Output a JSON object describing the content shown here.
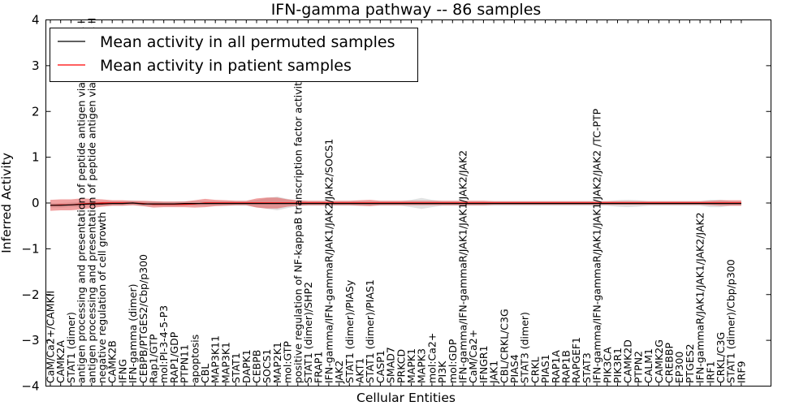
{
  "chart_data": {
    "type": "line",
    "title": "IFN-gamma pathway -- 86 samples",
    "xlabel": "Cellular Entities",
    "ylabel": "Inferred Activity",
    "ylim": [
      -4,
      4
    ],
    "yticks": [
      "4",
      "3",
      "2",
      "1",
      "0",
      "−1",
      "−2",
      "−3",
      "−4"
    ],
    "legend_position": "top-left",
    "categories": [
      "CaM/Ca2+/CAMKII",
      "CAMK2A",
      "STAT1 (dimer)",
      "antigen processing and presentation of peptide antigen via MHC class I",
      "antigen processing and presentation of peptide antigen via MHC class II",
      "negative regulation of cell growth",
      "CAMK2B",
      "IFNG",
      "IFN-gamma (dimer)",
      "CEBPB/PTGES2/Cbp/p300",
      "Rap1/GTP",
      "mol:PI-3-4-5-P3",
      "RAP1/GDP",
      "PTPN11",
      "apoptosis",
      "CBL",
      "MAP3K11",
      "MAP3K1",
      "STAT1",
      "DAPK1",
      "CEBPB",
      "SOCS1",
      "MAP2K1",
      "mol:GTP",
      "positive regulation of NF-kappaB transcription factor activity",
      "STAT1 (dimer)/SHP2",
      "FRAP1",
      "IFN-gamma/IFN-gammaR/JAK1/JAK2/JAK2/SOCS1",
      "JAK2",
      "STAT1 (dimer)/PIASy",
      "AKT1",
      "STAT1 (dimer)/PIAS1",
      "CASP1",
      "SMAD7",
      "PRKCD",
      "MAPK1",
      "MAPK3",
      "mol:Ca2+",
      "PI3K",
      "mol:GDP",
      "IFN-gamma/IFN-gammaR/JAK1/JAK1/JAK2/JAK2",
      "CaM/Ca2+",
      "IFNGR1",
      "JAK1",
      "CBL/CRKL/C3G",
      "PIAS4",
      "STAT3 (dimer)",
      "CRKL",
      "PIAS1",
      "RAP1A",
      "RAP1B",
      "RAPGEF1",
      "STAT3",
      "IFN-gamma/IFN-gammaR/JAK1/JAK1/JAK2/JAK2 /TC-PTP",
      "PIK3CA",
      "PIK3R1",
      "CAMK2D",
      "PTPN2",
      "CALM1",
      "CAMK2G",
      "CREBBP",
      "EP300",
      "PTGES2",
      "IFN-gammaR/JAK1/JAK1/JAK2/JAK2",
      "IRF1",
      "CRKL/C3G",
      "STAT1 (dimer)/Cbp/p300",
      "IRF9"
    ],
    "series": [
      {
        "name": "Mean activity in all permuted samples",
        "color": "#000000",
        "values": [
          -0.05,
          -0.05,
          -0.04,
          -0.03,
          -0.02,
          -0.02,
          -0.01,
          -0.01,
          0.0,
          -0.02,
          -0.02,
          -0.02,
          -0.02,
          -0.01,
          -0.01,
          -0.01,
          -0.01,
          -0.01,
          -0.01,
          -0.01,
          -0.01,
          -0.01,
          -0.01,
          -0.01,
          -0.01,
          -0.01,
          -0.01,
          -0.01,
          -0.01,
          -0.01,
          -0.01,
          -0.01,
          -0.01,
          -0.01,
          -0.01,
          -0.01,
          -0.01,
          -0.01,
          -0.01,
          -0.01,
          -0.01,
          -0.01,
          -0.01,
          -0.01,
          -0.01,
          -0.01,
          -0.01,
          -0.01,
          -0.01,
          -0.01,
          -0.01,
          -0.01,
          -0.01,
          -0.01,
          -0.01,
          -0.01,
          -0.01,
          -0.01,
          -0.01,
          -0.01,
          -0.01,
          -0.01,
          -0.01,
          -0.01,
          -0.01,
          -0.01,
          -0.01,
          -0.01
        ],
        "band": [
          0.05,
          0.05,
          0.05,
          0.05,
          0.05,
          0.05,
          0.05,
          0.05,
          0.05,
          0.05,
          0.05,
          0.05,
          0.05,
          0.05,
          0.05,
          0.05,
          0.05,
          0.05,
          0.05,
          0.05,
          0.08,
          0.12,
          0.15,
          0.1,
          0.06,
          0.05,
          0.05,
          0.05,
          0.05,
          0.05,
          0.05,
          0.05,
          0.05,
          0.05,
          0.05,
          0.08,
          0.12,
          0.08,
          0.05,
          0.05,
          0.05,
          0.05,
          0.05,
          0.05,
          0.05,
          0.05,
          0.05,
          0.05,
          0.05,
          0.05,
          0.05,
          0.05,
          0.05,
          0.05,
          0.05,
          0.07,
          0.08,
          0.07,
          0.05,
          0.05,
          0.05,
          0.05,
          0.05,
          0.05,
          0.08,
          0.08,
          0.05,
          0.05
        ]
      },
      {
        "name": "Mean activity in patient samples",
        "color": "#ff0000",
        "values": [
          -0.05,
          -0.04,
          -0.04,
          -0.02,
          -0.01,
          0.0,
          0.0,
          0.0,
          0.0,
          -0.01,
          -0.03,
          -0.03,
          -0.03,
          -0.03,
          -0.02,
          0.0,
          0.0,
          0.0,
          0.0,
          0.0,
          0.0,
          0.0,
          0.0,
          0.0,
          0.0,
          0.0,
          0.0,
          0.0,
          0.0,
          0.0,
          0.0,
          0.0,
          0.0,
          0.0,
          0.0,
          0.0,
          0.0,
          0.0,
          0.0,
          0.0,
          0.0,
          0.0,
          0.0,
          0.0,
          0.0,
          0.0,
          0.0,
          0.0,
          0.0,
          0.0,
          0.0,
          0.0,
          0.0,
          0.0,
          0.0,
          0.0,
          0.0,
          0.0,
          0.0,
          0.0,
          0.0,
          0.0,
          0.0,
          0.0,
          0.0,
          0.0,
          0.0,
          0.0
        ],
        "band": [
          0.12,
          0.12,
          0.12,
          0.12,
          0.1,
          0.08,
          0.06,
          0.06,
          0.05,
          0.06,
          0.07,
          0.06,
          0.06,
          0.06,
          0.08,
          0.09,
          0.07,
          0.06,
          0.05,
          0.05,
          0.1,
          0.12,
          0.12,
          0.08,
          0.06,
          0.05,
          0.05,
          0.05,
          0.05,
          0.05,
          0.06,
          0.07,
          0.05,
          0.05,
          0.05,
          0.05,
          0.05,
          0.05,
          0.05,
          0.05,
          0.05,
          0.05,
          0.05,
          0.04,
          0.04,
          0.04,
          0.04,
          0.04,
          0.04,
          0.04,
          0.04,
          0.04,
          0.04,
          0.04,
          0.04,
          0.04,
          0.04,
          0.04,
          0.04,
          0.04,
          0.04,
          0.04,
          0.04,
          0.04,
          0.05,
          0.06,
          0.06,
          0.06
        ]
      }
    ]
  }
}
